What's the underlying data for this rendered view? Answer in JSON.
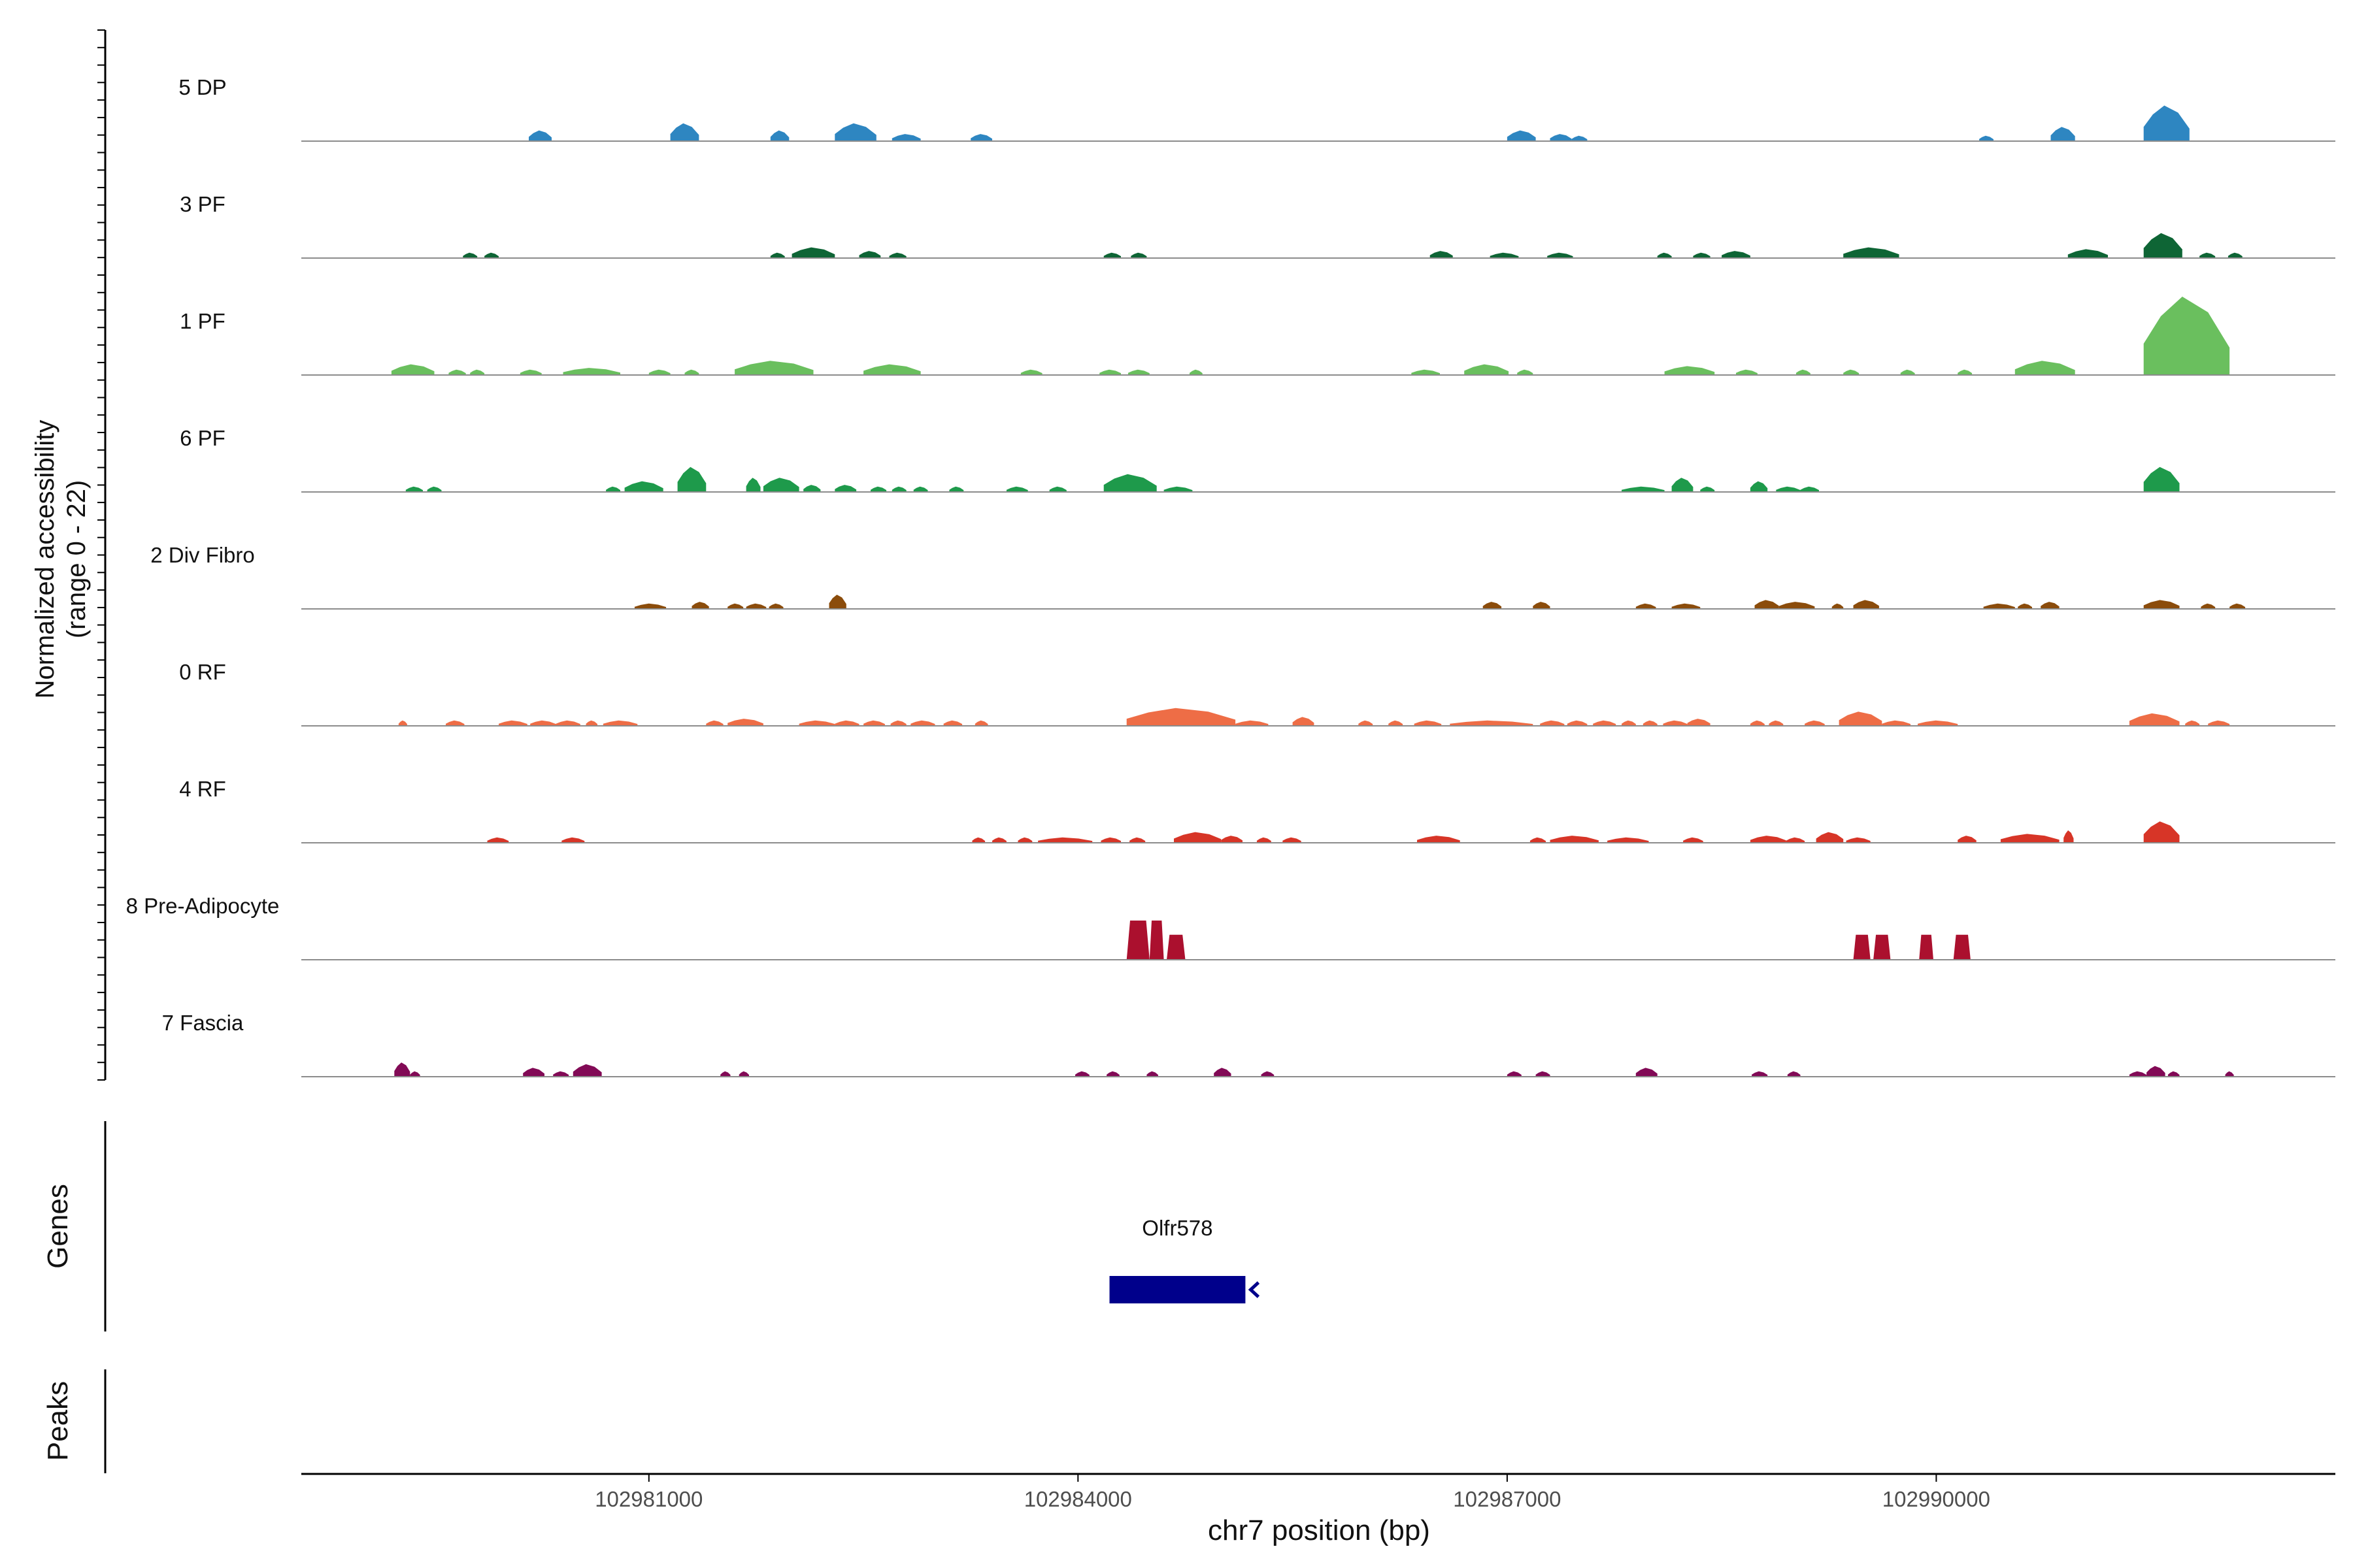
{
  "chart_data": {
    "type": "area",
    "title": "",
    "ylabel": "Normalized accessibility\n(range 0 - 22)",
    "xlabel": "chr7 position (bp)",
    "xlim": [
      102978570,
      102992790
    ],
    "ylim": [
      0,
      22
    ],
    "xticks": [
      102981000,
      102984000,
      102987000,
      102990000
    ],
    "xtick_labels": [
      "102981000",
      "102984000",
      "102987000",
      "102990000"
    ],
    "legend": "none",
    "series": [
      {
        "name": "5 DP",
        "color": "#2e86c1",
        "peaks": [
          [
            102980160,
            102980320,
            3
          ],
          [
            102981150,
            102981350,
            5
          ],
          [
            102981850,
            102981980,
            3
          ],
          [
            102982300,
            102982590,
            5
          ],
          [
            102982700,
            102982900,
            2
          ],
          [
            102983250,
            102983400,
            2
          ],
          [
            102987000,
            102987200,
            3
          ],
          [
            102987300,
            102987450,
            2
          ],
          [
            102987450,
            102987560,
            1.5
          ],
          [
            102990300,
            102990400,
            1.5
          ],
          [
            102990800,
            102990970,
            4
          ],
          [
            102991450,
            102991770,
            10
          ]
        ]
      },
      {
        "name": "3 PF",
        "color": "#0e6535",
        "peaks": [
          [
            102979700,
            102979800,
            1.5
          ],
          [
            102979850,
            102979950,
            1.5
          ],
          [
            102981850,
            102981950,
            1.5
          ],
          [
            102982000,
            102982300,
            3
          ],
          [
            102982470,
            102982620,
            2
          ],
          [
            102982680,
            102982800,
            1.5
          ],
          [
            102984180,
            102984300,
            1.5
          ],
          [
            102984370,
            102984480,
            1.5
          ],
          [
            102986460,
            102986620,
            2
          ],
          [
            102986880,
            102987080,
            1.5
          ],
          [
            102987280,
            102987460,
            1.5
          ],
          [
            102988050,
            102988150,
            1.5
          ],
          [
            102988300,
            102988420,
            1.5
          ],
          [
            102988500,
            102988700,
            2
          ],
          [
            102989350,
            102989740,
            3
          ],
          [
            102990920,
            102991200,
            2.5
          ],
          [
            102991450,
            102991720,
            7
          ],
          [
            102991840,
            102991950,
            1.5
          ],
          [
            102992040,
            102992140,
            1.5
          ]
        ]
      },
      {
        "name": "1 PF",
        "color": "#6abf5e",
        "peaks": [
          [
            102979200,
            102979500,
            3
          ],
          [
            102979600,
            102979720,
            1.5
          ],
          [
            102979750,
            102979850,
            1.5
          ],
          [
            102980100,
            102980250,
            1.5
          ],
          [
            102980400,
            102980800,
            2
          ],
          [
            102981000,
            102981150,
            1.5
          ],
          [
            102981250,
            102981350,
            1.5
          ],
          [
            102981600,
            102982150,
            4
          ],
          [
            102982500,
            102982900,
            3
          ],
          [
            102983600,
            102983750,
            1.5
          ],
          [
            102984150,
            102984300,
            1.5
          ],
          [
            102984350,
            102984500,
            1.5
          ],
          [
            102984780,
            102984870,
            1.5
          ],
          [
            102986330,
            102986530,
            1.5
          ],
          [
            102986700,
            102987010,
            3
          ],
          [
            102987070,
            102987180,
            1.5
          ],
          [
            102988100,
            102988450,
            2.5
          ],
          [
            102988600,
            102988750,
            1.5
          ],
          [
            102989020,
            102989120,
            1.5
          ],
          [
            102989350,
            102989460,
            1.5
          ],
          [
            102989750,
            102989850,
            1.5
          ],
          [
            102990150,
            102990250,
            1.5
          ],
          [
            102990550,
            102990970,
            4
          ],
          [
            102991450,
            102992050,
            22
          ]
        ]
      },
      {
        "name": "6 PF",
        "color": "#1e9a4b",
        "peaks": [
          [
            102979300,
            102979420,
            1.5
          ],
          [
            102979450,
            102979550,
            1.5
          ],
          [
            102980700,
            102980800,
            1.5
          ],
          [
            102980830,
            102981100,
            3
          ],
          [
            102981200,
            102981400,
            7
          ],
          [
            102981680,
            102981780,
            4
          ],
          [
            102981800,
            102982050,
            4
          ],
          [
            102982080,
            102982200,
            2
          ],
          [
            102982300,
            102982450,
            2
          ],
          [
            102982550,
            102982660,
            1.5
          ],
          [
            102982700,
            102982800,
            1.5
          ],
          [
            102982850,
            102982950,
            1.5
          ],
          [
            102983100,
            102983200,
            1.5
          ],
          [
            102983500,
            102983650,
            1.5
          ],
          [
            102983800,
            102983920,
            1.5
          ],
          [
            102984180,
            102984550,
            5
          ],
          [
            102984600,
            102984800,
            1.5
          ],
          [
            102987800,
            102988100,
            1.5
          ],
          [
            102988150,
            102988300,
            4
          ],
          [
            102988350,
            102988450,
            1.5
          ],
          [
            102988700,
            102988820,
            3
          ],
          [
            102988880,
            102989050,
            1.5
          ],
          [
            102989050,
            102989180,
            1.5
          ],
          [
            102991450,
            102991700,
            7
          ]
        ]
      },
      {
        "name": "2 Div Fibro",
        "color": "#8b4c0b",
        "peaks": [
          [
            102980900,
            102981120,
            1.5
          ],
          [
            102981300,
            102981420,
            2
          ],
          [
            102981550,
            102981660,
            1.5
          ],
          [
            102981680,
            102981820,
            1.5
          ],
          [
            102981840,
            102981940,
            1.5
          ],
          [
            102982260,
            102982380,
            4
          ],
          [
            102986830,
            102986960,
            2
          ],
          [
            102987180,
            102987300,
            2
          ],
          [
            102987900,
            102988040,
            1.5
          ],
          [
            102988150,
            102988350,
            1.5
          ],
          [
            102988730,
            102988900,
            2.5
          ],
          [
            102988900,
            102989150,
            2
          ],
          [
            102989270,
            102989350,
            1.5
          ],
          [
            102989420,
            102989600,
            2.5
          ],
          [
            102990330,
            102990550,
            1.5
          ],
          [
            102990570,
            102990670,
            1.5
          ],
          [
            102990730,
            102990860,
            2
          ],
          [
            102991450,
            102991700,
            2.5
          ],
          [
            102991850,
            102991950,
            1.5
          ],
          [
            102992050,
            102992160,
            1.5
          ]
        ]
      },
      {
        "name": "0 RF",
        "color": "#ee6d46",
        "peaks": [
          [
            102979250,
            102979310,
            1.5
          ],
          [
            102979580,
            102979710,
            1.5
          ],
          [
            102979950,
            102980150,
            1.5
          ],
          [
            102980170,
            102980350,
            1.5
          ],
          [
            102980350,
            102980520,
            1.5
          ],
          [
            102980560,
            102980640,
            1.5
          ],
          [
            102980680,
            102980920,
            1.5
          ],
          [
            102981400,
            102981520,
            1.5
          ],
          [
            102981550,
            102981800,
            2
          ],
          [
            102982050,
            102982300,
            1.5
          ],
          [
            102982300,
            102982470,
            1.5
          ],
          [
            102982500,
            102982650,
            1.5
          ],
          [
            102982690,
            102982800,
            1.5
          ],
          [
            102982830,
            102983000,
            1.5
          ],
          [
            102983060,
            102983190,
            1.5
          ],
          [
            102983280,
            102983370,
            1.5
          ],
          [
            102984340,
            102985100,
            5
          ],
          [
            102985100,
            102985330,
            1.5
          ],
          [
            102985500,
            102985650,
            2.5
          ],
          [
            102985960,
            102986060,
            1.5
          ],
          [
            102986170,
            102986270,
            1.5
          ],
          [
            102986350,
            102986540,
            1.5
          ],
          [
            102986600,
            102987180,
            1.5
          ],
          [
            102987230,
            102987400,
            1.5
          ],
          [
            102987420,
            102987560,
            1.5
          ],
          [
            102987600,
            102987760,
            1.5
          ],
          [
            102987800,
            102987900,
            1.5
          ],
          [
            102987950,
            102988050,
            1.5
          ],
          [
            102988090,
            102988260,
            1.5
          ],
          [
            102988260,
            102988420,
            2
          ],
          [
            102988700,
            102988800,
            1.5
          ],
          [
            102988830,
            102988930,
            1.5
          ],
          [
            102989080,
            102989220,
            1.5
          ],
          [
            102989320,
            102989620,
            4
          ],
          [
            102989620,
            102989820,
            1.5
          ],
          [
            102989870,
            102990150,
            1.5
          ],
          [
            102991350,
            102991700,
            3.5
          ],
          [
            102991740,
            102991840,
            1.5
          ],
          [
            102991900,
            102992050,
            1.5
          ]
        ]
      },
      {
        "name": "4 RF",
        "color": "#d73527",
        "peaks": [
          [
            102979870,
            102980020,
            1.5
          ],
          [
            102980390,
            102980550,
            1.5
          ],
          [
            102983260,
            102983350,
            1.5
          ],
          [
            102983400,
            102983500,
            1.5
          ],
          [
            102983580,
            102983680,
            1.5
          ],
          [
            102983720,
            102984100,
            1.5
          ],
          [
            102984160,
            102984300,
            1.5
          ],
          [
            102984360,
            102984470,
            1.5
          ],
          [
            102984670,
            102985000,
            3
          ],
          [
            102985000,
            102985150,
            2
          ],
          [
            102985250,
            102985350,
            1.5
          ],
          [
            102985430,
            102985560,
            1.5
          ],
          [
            102986370,
            102986670,
            2
          ],
          [
            102987160,
            102987270,
            1.5
          ],
          [
            102987300,
            102987640,
            2
          ],
          [
            102987700,
            102987990,
            1.5
          ],
          [
            102988230,
            102988370,
            1.5
          ],
          [
            102988700,
            102988950,
            2
          ],
          [
            102988950,
            102989080,
            1.5
          ],
          [
            102989160,
            102989350,
            3
          ],
          [
            102989370,
            102989540,
            1.5
          ],
          [
            102990150,
            102990280,
            2
          ],
          [
            102990450,
            102990860,
            2.5
          ],
          [
            102990890,
            102990960,
            3.5
          ],
          [
            102991450,
            102991700,
            6
          ]
        ]
      },
      {
        "name": "8 Pre-Adipocyte",
        "color": "#ab102e",
        "peaks": [
          [
            102984340,
            102984500,
            11
          ],
          [
            102984500,
            102984600,
            11
          ],
          [
            102984620,
            102984750,
            7
          ],
          [
            102989420,
            102989540,
            7
          ],
          [
            102989560,
            102989680,
            7
          ],
          [
            102989880,
            102989980,
            7
          ],
          [
            102990120,
            102990240,
            7
          ]
        ]
      },
      {
        "name": "7 Fascia",
        "color": "#820a56",
        "peaks": [
          [
            102979220,
            102979330,
            4
          ],
          [
            102979330,
            102979400,
            1.5
          ],
          [
            102980120,
            102980270,
            2.5
          ],
          [
            102980330,
            102980440,
            1.5
          ],
          [
            102980470,
            102980670,
            3.5
          ],
          [
            102981500,
            102981570,
            1.5
          ],
          [
            102981630,
            102981700,
            1.5
          ],
          [
            102983980,
            102984080,
            1.5
          ],
          [
            102984200,
            102984290,
            1.5
          ],
          [
            102984480,
            102984560,
            1.5
          ],
          [
            102984950,
            102985070,
            2.5
          ],
          [
            102985280,
            102985370,
            1.5
          ],
          [
            102987000,
            102987100,
            1.5
          ],
          [
            102987200,
            102987300,
            1.5
          ],
          [
            102987900,
            102988050,
            2.5
          ],
          [
            102988710,
            102988820,
            1.5
          ],
          [
            102988960,
            102989050,
            1.5
          ],
          [
            102991350,
            102991470,
            1.5
          ],
          [
            102991470,
            102991600,
            3
          ],
          [
            102991620,
            102991700,
            1.5
          ],
          [
            102992020,
            102992080,
            1.5
          ]
        ]
      }
    ],
    "genes": [
      {
        "name": "Olfr578",
        "start": 102984220,
        "end": 102985170,
        "strand": "-"
      }
    ],
    "panel_labels": {
      "genes": "Genes",
      "peaks": "Peaks"
    }
  }
}
